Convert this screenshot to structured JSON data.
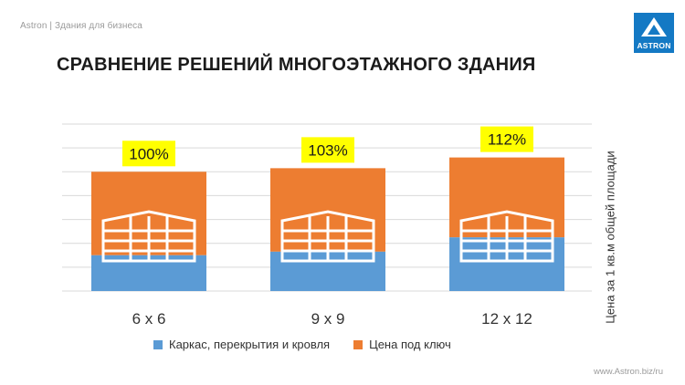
{
  "header": {
    "text": "Astron | Здания для бизнеса"
  },
  "logo": {
    "text": "ASTRON",
    "color": "#1479c4"
  },
  "title": "СРАВНЕНИЕ РЕШЕНИЙ МНОГОЭТАЖНОГО ЗДАНИЯ",
  "footer": {
    "text": "www.Astron.biz/ru"
  },
  "colors": {
    "frame": "#5b9bd5",
    "turnkey": "#ed7d31",
    "highlight": "#ffff00",
    "grid": "#d9d9d9"
  },
  "chart_data": {
    "type": "bar",
    "categories": [
      "6 x 6",
      "9 x 9",
      "12 x 12"
    ],
    "ylabel": "Цена за 1 кв.м общей площади",
    "series": [
      {
        "name": "Каркас, перекрытия и кровля",
        "values": [
          30,
          33,
          45
        ],
        "color": "#5b9bd5"
      },
      {
        "name": "Цена под ключ",
        "values": [
          100,
          103,
          112
        ],
        "color": "#ed7d31"
      }
    ],
    "data_labels": [
      "100%",
      "103%",
      "112%"
    ],
    "ylim": [
      0,
      140
    ],
    "grid": true,
    "legend_position": "bottom"
  }
}
